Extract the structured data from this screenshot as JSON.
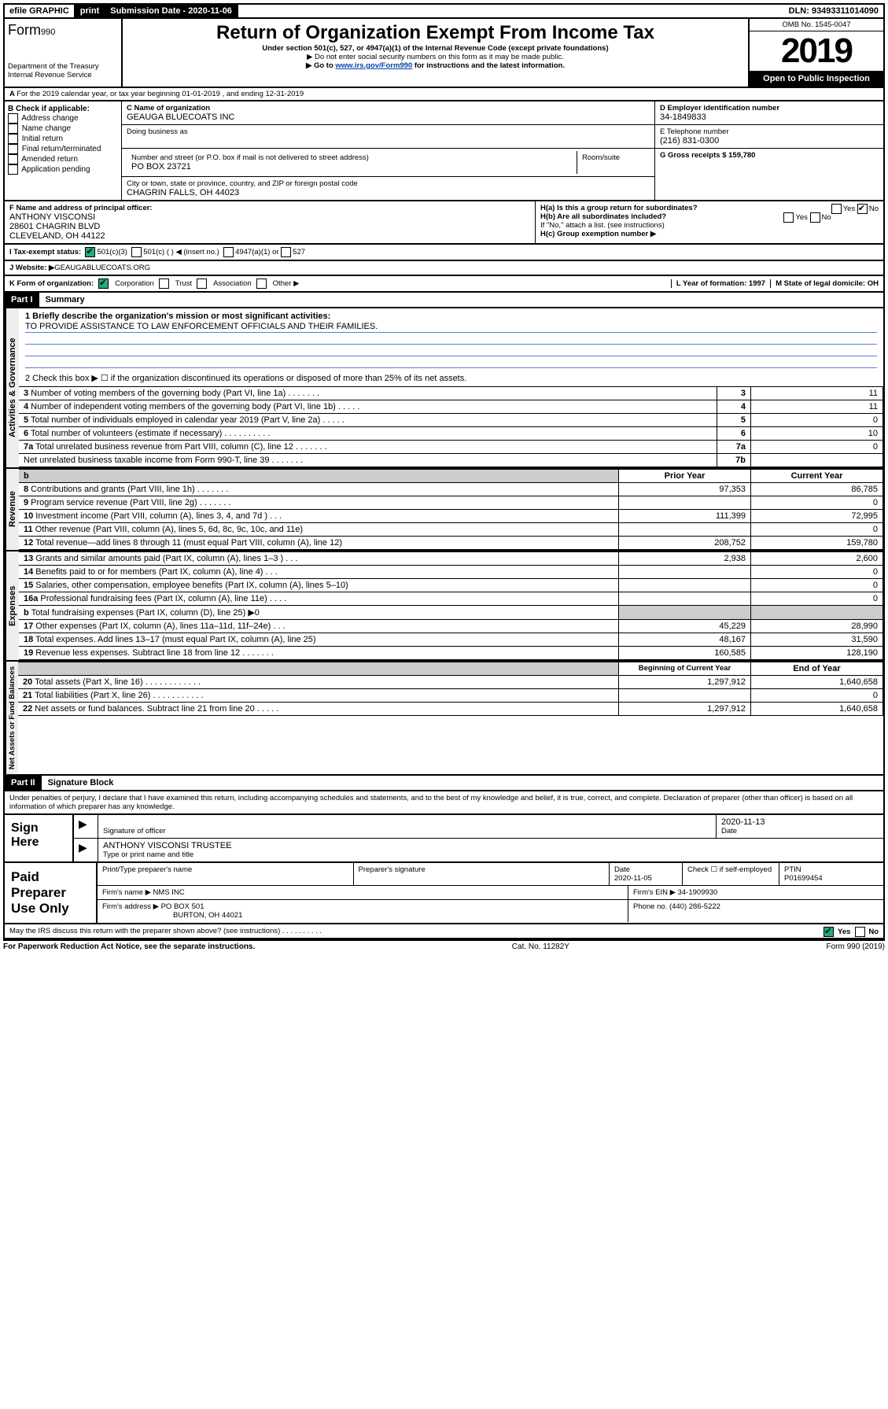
{
  "topbar": {
    "efile": "efile GRAPHIC",
    "print": "print",
    "submission_label": "Submission Date - 2020-11-06",
    "dln_label": "DLN: 93493311014090"
  },
  "header": {
    "form_label": "Form",
    "form_num": "990",
    "dept": "Department of the Treasury\nInternal Revenue Service",
    "title": "Return of Organization Exempt From Income Tax",
    "sub1": "Under section 501(c), 527, or 4947(a)(1) of the Internal Revenue Code (except private foundations)",
    "sub2": "▶ Do not enter social security numbers on this form as it may be made public.",
    "sub3_pre": "▶ Go to ",
    "sub3_link": "www.irs.gov/Form990",
    "sub3_post": " for instructions and the latest information.",
    "omb": "OMB No. 1545-0047",
    "year": "2019",
    "open": "Open to Public Inspection"
  },
  "sectionA": "For the 2019 calendar year, or tax year beginning 01-01-2019    , and ending 12-31-2019",
  "boxB": {
    "title": "B Check if applicable:",
    "items": [
      "Address change",
      "Name change",
      "Initial return",
      "Final return/terminated",
      "Amended return",
      "Application pending"
    ]
  },
  "boxC": {
    "name_label": "C Name of organization",
    "name": "GEAUGA BLUECOATS INC",
    "dba_label": "Doing business as",
    "addr_label": "Number and street (or P.O. box if mail is not delivered to street address)",
    "room": "Room/suite",
    "addr": "PO BOX 23721",
    "city_label": "City or town, state or province, country, and ZIP or foreign postal code",
    "city": "CHAGRIN FALLS, OH  44023"
  },
  "boxD": {
    "label": "D Employer identification number",
    "val": "34-1849833"
  },
  "boxE": {
    "label": "E Telephone number",
    "val": "(216) 831-0300"
  },
  "boxG": {
    "label": "G Gross receipts $ 159,780"
  },
  "boxF": {
    "label": "F  Name and address of principal officer:",
    "name": "ANTHONY VISCONSI",
    "addr1": "28601 CHAGRIN BLVD",
    "addr2": "CLEVELAND, OH  44122"
  },
  "boxH": {
    "a": "H(a)  Is this a group return for subordinates?",
    "b": "H(b)  Are all subordinates included?",
    "b_note": "If \"No,\" attach a list. (see instructions)",
    "c": "H(c)  Group exemption number ▶"
  },
  "taxI": {
    "label": "I  Tax-exempt status:",
    "o1": "501(c)(3)",
    "o2": "501(c) (   ) ◀ (insert no.)",
    "o3": "4947(a)(1) or",
    "o4": "527"
  },
  "taxJ": {
    "label": "J  Website: ▶",
    "val": " GEAUGABLUECOATS.ORG"
  },
  "rowK": {
    "label": "K Form of organization:",
    "o1": "Corporation",
    "o2": "Trust",
    "o3": "Association",
    "o4": "Other ▶",
    "L": "L Year of formation: 1997",
    "M": "M State of legal domicile: OH"
  },
  "part1": {
    "tag": "Part I",
    "title": "Summary"
  },
  "governance": {
    "l1": "1  Briefly describe the organization's mission or most significant activities:",
    "mission": "TO PROVIDE ASSISTANCE TO LAW ENFORCEMENT OFFICIALS AND THEIR FAMILIES.",
    "l2": "2  Check this box ▶ ☐  if the organization discontinued its operations or disposed of more than 25% of its net assets.",
    "rows": [
      {
        "n": "3",
        "t": "Number of voting members of the governing body (Part VI, line 1a)   .   .   .   .   .   .   .",
        "k": "3",
        "v": "11"
      },
      {
        "n": "4",
        "t": "Number of independent voting members of the governing body (Part VI, line 1b)   .   .   .   .   .",
        "k": "4",
        "v": "11"
      },
      {
        "n": "5",
        "t": "Total number of individuals employed in calendar year 2019 (Part V, line 2a)   .   .   .   .   .",
        "k": "5",
        "v": "0"
      },
      {
        "n": "6",
        "t": "Total number of volunteers (estimate if necessary)   .   .   .   .   .   .   .   .   .   .",
        "k": "6",
        "v": "10"
      },
      {
        "n": "7a",
        "t": "Total unrelated business revenue from Part VIII, column (C), line 12   .   .   .   .   .   .   .",
        "k": "7a",
        "v": "0"
      },
      {
        "n": "",
        "t": "Net unrelated business taxable income from Form 990-T, line 39   .   .   .   .   .   .   .",
        "k": "7b",
        "v": ""
      }
    ]
  },
  "revenue": {
    "head_prior": "Prior Year",
    "head_curr": "Current Year",
    "rows": [
      {
        "n": "8",
        "t": "Contributions and grants (Part VIII, line 1h)   .   .   .   .   .   .   .",
        "p": "97,353",
        "c": "86,785"
      },
      {
        "n": "9",
        "t": "Program service revenue (Part VIII, line 2g)   .   .   .   .   .   .   .",
        "p": "",
        "c": "0"
      },
      {
        "n": "10",
        "t": "Investment income (Part VIII, column (A), lines 3, 4, and 7d )   .   .   .",
        "p": "111,399",
        "c": "72,995"
      },
      {
        "n": "11",
        "t": "Other revenue (Part VIII, column (A), lines 5, 6d, 8c, 9c, 10c, and 11e)",
        "p": "",
        "c": "0"
      },
      {
        "n": "12",
        "t": "Total revenue—add lines 8 through 11 (must equal Part VIII, column (A), line 12)",
        "p": "208,752",
        "c": "159,780"
      }
    ]
  },
  "expenses": {
    "rows": [
      {
        "n": "13",
        "t": "Grants and similar amounts paid (Part IX, column (A), lines 1–3 )   .   .   .",
        "p": "2,938",
        "c": "2,600"
      },
      {
        "n": "14",
        "t": "Benefits paid to or for members (Part IX, column (A), line 4)   .   .   .",
        "p": "",
        "c": "0"
      },
      {
        "n": "15",
        "t": "Salaries, other compensation, employee benefits (Part IX, column (A), lines 5–10)",
        "p": "",
        "c": "0"
      },
      {
        "n": "16a",
        "t": "Professional fundraising fees (Part IX, column (A), line 11e)   .   .   .   .",
        "p": "",
        "c": "0"
      },
      {
        "n": "b",
        "t": "Total fundraising expenses (Part IX, column (D), line 25) ▶0",
        "p": "GREY",
        "c": "GREY"
      },
      {
        "n": "17",
        "t": "Other expenses (Part IX, column (A), lines 11a–11d, 11f–24e)   .   .   .",
        "p": "45,229",
        "c": "28,990"
      },
      {
        "n": "18",
        "t": "Total expenses. Add lines 13–17 (must equal Part IX, column (A), line 25)",
        "p": "48,167",
        "c": "31,590"
      },
      {
        "n": "19",
        "t": "Revenue less expenses. Subtract line 18 from line 12   .   .   .   .   .   .   .",
        "p": "160,585",
        "c": "128,190"
      }
    ]
  },
  "netassets": {
    "head_beg": "Beginning of Current Year",
    "head_end": "End of Year",
    "rows": [
      {
        "n": "20",
        "t": "Total assets (Part X, line 16)   .   .   .   .   .   .   .   .   .   .   .   .",
        "p": "1,297,912",
        "c": "1,640,658"
      },
      {
        "n": "21",
        "t": "Total liabilities (Part X, line 26)   .   .   .   .   .   .   .   .   .   .   .",
        "p": "",
        "c": "0"
      },
      {
        "n": "22",
        "t": "Net assets or fund balances. Subtract line 21 from line 20   .   .   .   .   .",
        "p": "1,297,912",
        "c": "1,640,658"
      }
    ]
  },
  "part2": {
    "tag": "Part II",
    "title": "Signature Block"
  },
  "perjury": "Under penalties of perjury, I declare that I have examined this return, including accompanying schedules and statements, and to the best of my knowledge and belief, it is true, correct, and complete. Declaration of preparer (other than officer) is based on all information of which preparer has any knowledge.",
  "sign": {
    "here": "Sign Here",
    "sig_label": "Signature of officer",
    "date": "2020-11-13",
    "date_label": "Date",
    "name": "ANTHONY VISCONSI  TRUSTEE",
    "name_label": "Type or print name and title"
  },
  "paid": {
    "left": "Paid Preparer Use Only",
    "h1": "Print/Type preparer's name",
    "h2": "Preparer's signature",
    "h3": "Date",
    "h3v": "2020-11-05",
    "h4": "Check ☐ if self-employed",
    "h5": "PTIN",
    "h5v": "P01699454",
    "firm_label": "Firm's name    ▶",
    "firm": "NMS INC",
    "ein": "Firm's EIN ▶ 34-1909930",
    "addr_label": "Firm's address ▶",
    "addr": "PO BOX 501",
    "city": "BURTON, OH  44021",
    "phone": "Phone no. (440) 286-5222"
  },
  "discuss": "May the IRS discuss this return with the preparer shown above? (see instructions)   .   .   .   .   .   .   .   .   .   .",
  "footer": {
    "left": "For Paperwork Reduction Act Notice, see the separate instructions.",
    "mid": "Cat. No. 11282Y",
    "right": "Form 990 (2019)"
  },
  "side_labels": {
    "gov": "Activities & Governance",
    "rev": "Revenue",
    "exp": "Expenses",
    "net": "Net Assets or Fund Balances"
  },
  "yesno": {
    "yes": "Yes",
    "no": "No"
  }
}
